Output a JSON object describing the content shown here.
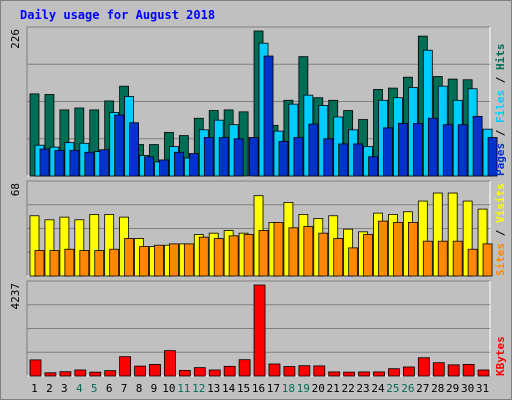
{
  "chart_data": [
    {
      "type": "bar",
      "title": "Daily usage for August 2018",
      "categories": [
        "1",
        "2",
        "3",
        "4",
        "5",
        "6",
        "7",
        "8",
        "9",
        "10",
        "11",
        "12",
        "13",
        "14",
        "15",
        "16",
        "17",
        "18",
        "19",
        "20",
        "21",
        "22",
        "23",
        "24",
        "25",
        "26",
        "27",
        "28",
        "29",
        "30",
        "31"
      ],
      "weekend_days": [
        "4",
        "5",
        "11",
        "12",
        "18",
        "19",
        "25",
        "26"
      ],
      "ymax_label": "226",
      "ylim": [
        0,
        226
      ],
      "ylabel_parts": [
        "Pages",
        "Files",
        "Hits"
      ],
      "ylabel_separator": " / ",
      "series": [
        {
          "name": "Hits",
          "color": "#006e55",
          "values": [
            128,
            127,
            103,
            106,
            103,
            117,
            140,
            49,
            49,
            68,
            63,
            90,
            102,
            103,
            100,
            226,
            79,
            118,
            186,
            122,
            118,
            102,
            88,
            135,
            137,
            154,
            218,
            155,
            151,
            150,
            70
          ]
        },
        {
          "name": "Files",
          "color": "#00cdff",
          "values": [
            48,
            45,
            52,
            51,
            38,
            99,
            124,
            32,
            22,
            46,
            28,
            72,
            87,
            80,
            0,
            207,
            70,
            112,
            126,
            110,
            92,
            72,
            46,
            118,
            122,
            138,
            196,
            140,
            118,
            136,
            73
          ]
        },
        {
          "name": "Pages",
          "color": "#0033cc",
          "values": [
            42,
            40,
            40,
            37,
            41,
            95,
            83,
            30,
            25,
            37,
            35,
            60,
            60,
            58,
            60,
            187,
            54,
            60,
            81,
            58,
            50,
            50,
            30,
            75,
            82,
            82,
            90,
            80,
            80,
            93,
            60
          ]
        }
      ],
      "grid": true
    },
    {
      "type": "bar",
      "ymax_label": "68",
      "ylim": [
        0,
        68
      ],
      "ylabel_parts": [
        "Sites",
        "Visits"
      ],
      "ylabel_separator": " / ",
      "series": [
        {
          "name": "Visits",
          "color": "#ffff00",
          "values": [
            45,
            42,
            44,
            42,
            46,
            46,
            44,
            28,
            22,
            23,
            24,
            31,
            32,
            34,
            32,
            60,
            40,
            55,
            46,
            43,
            45,
            35,
            33,
            47,
            46,
            48,
            56,
            62,
            62,
            56,
            50
          ]
        },
        {
          "name": "Sites",
          "color": "#ff8800",
          "values": [
            19,
            19,
            20,
            19,
            19,
            20,
            28,
            22,
            23,
            24,
            24,
            29,
            28,
            30,
            31,
            34,
            40,
            36,
            37,
            32,
            28,
            21,
            31,
            41,
            40,
            40,
            26,
            26,
            26,
            20,
            24
          ]
        }
      ],
      "grid": true
    },
    {
      "type": "bar",
      "ymax_label": "4237",
      "ylim": [
        0,
        4237
      ],
      "ylabel_parts": [
        "KBytes"
      ],
      "ylabel_separator": "",
      "series": [
        {
          "name": "KBytes",
          "color": "#ff0000",
          "values": [
            750,
            150,
            200,
            280,
            180,
            250,
            900,
            460,
            540,
            1180,
            260,
            390,
            280,
            450,
            760,
            4237,
            560,
            440,
            480,
            470,
            190,
            180,
            190,
            190,
            340,
            420,
            850,
            620,
            520,
            540,
            280
          ]
        }
      ],
      "grid": true
    }
  ],
  "colors": {
    "background": "#c0c0c0",
    "grid": "#808080",
    "title": "#0000ff",
    "weekday_label": "#000000",
    "weekend_label": "#006e55"
  }
}
